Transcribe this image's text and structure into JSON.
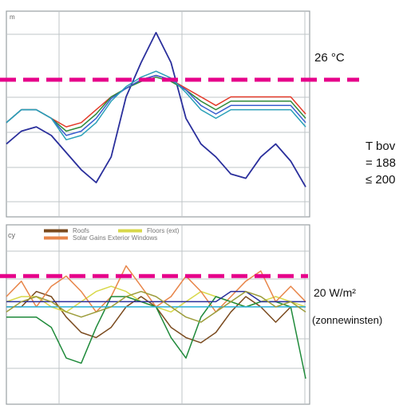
{
  "colors": {
    "threshold": "#e6008a",
    "grid": "#bfc4c7",
    "panel_border": "#9aa0a4",
    "series_temp": [
      "#2a2f9c",
      "#e43a2a",
      "#2f8a3a",
      "#3a5fcf",
      "#2aa0b8"
    ],
    "series_gains": [
      "#7a4a1e",
      "#d8d84a",
      "#e8864a",
      "#1f8a3a",
      "#2a2f9c",
      "#28b0d8",
      "#9c9c3a"
    ]
  },
  "top_panel": {
    "corner_text": "m",
    "threshold_label": "26 °C"
  },
  "bottom_panel": {
    "legend": [
      {
        "label": "Roofs",
        "color": "#7a4a1e"
      },
      {
        "label": "Floors (ext)",
        "color": "#d8d84a"
      },
      {
        "label": "Solar Gains Exterior Windows",
        "color": "#e8864a"
      }
    ],
    "legend_stub": "cy",
    "threshold_label": "20 W/m²",
    "threshold_sublabel": "(zonnewinsten)"
  },
  "side_note": {
    "line1": "T bov",
    "line2": "= 188",
    "line3": "≤ 200"
  },
  "chart_data": [
    {
      "type": "line",
      "title": "",
      "threshold": {
        "value": 26,
        "unit": "°C",
        "label": "26 °C"
      },
      "grid": true,
      "series": [
        {
          "values": [
            18.5,
            20.0,
            20.5,
            19.5,
            17.5,
            15.5,
            14.0,
            17.0,
            24.0,
            28.0,
            31.5,
            28.0,
            21.5,
            18.5,
            17.0,
            15.0,
            14.5,
            17.0,
            18.5,
            16.5,
            13.5
          ]
        },
        {
          "values": [
            21.0,
            22.5,
            22.5,
            21.5,
            20.5,
            21.0,
            22.5,
            24.0,
            25.0,
            26.0,
            26.5,
            26.0,
            25.0,
            24.0,
            23.0,
            24.0,
            24.0,
            24.0,
            24.0,
            24.0,
            22.0
          ]
        },
        {
          "values": [
            21.0,
            22.5,
            22.5,
            21.5,
            20.0,
            20.5,
            22.0,
            24.0,
            25.0,
            25.8,
            26.3,
            25.8,
            24.8,
            23.5,
            22.5,
            23.5,
            23.5,
            23.5,
            23.5,
            23.5,
            21.5
          ]
        },
        {
          "values": [
            21.0,
            22.5,
            22.5,
            21.5,
            19.5,
            20.0,
            21.5,
            23.8,
            25.0,
            26.0,
            26.5,
            26.0,
            24.8,
            23.0,
            22.0,
            23.0,
            23.0,
            23.0,
            23.0,
            23.0,
            21.0
          ]
        },
        {
          "values": [
            21.0,
            22.5,
            22.5,
            21.5,
            19.0,
            19.5,
            21.0,
            23.5,
            25.2,
            26.3,
            27.0,
            26.2,
            24.5,
            22.5,
            21.5,
            22.5,
            22.5,
            22.5,
            22.5,
            22.5,
            20.5
          ]
        }
      ]
    },
    {
      "type": "line",
      "title": "",
      "threshold": {
        "value": 20,
        "unit": "W/m²",
        "label": "20 W/m²"
      },
      "grid": true,
      "series": [
        {
          "name": "Roofs",
          "values": [
            14,
            14,
            17,
            16,
            12,
            9,
            8,
            10,
            14,
            16,
            14,
            10,
            8,
            7,
            9,
            13,
            16,
            14,
            11,
            14,
            14
          ]
        },
        {
          "name": "Floors (ext)",
          "values": [
            15,
            16,
            16,
            14,
            13,
            15,
            17,
            18,
            17,
            15,
            14,
            13,
            15,
            17,
            16,
            15,
            14,
            15,
            16,
            15,
            14
          ]
        },
        {
          "name": "Solar Gains Exterior Windows",
          "values": [
            16,
            19,
            14,
            18,
            20,
            17,
            13,
            16,
            22,
            18,
            14,
            16,
            20,
            17,
            13,
            16,
            19,
            21,
            15,
            18,
            15
          ]
        },
        {
          "values": [
            12,
            12,
            12,
            10,
            4,
            3,
            10,
            16,
            16,
            15,
            14,
            8,
            4,
            12,
            16,
            15,
            14,
            15,
            15,
            14,
            0
          ]
        },
        {
          "values": [
            15,
            15,
            15,
            15,
            15,
            15,
            15,
            15,
            15,
            15,
            15,
            15,
            15,
            15,
            15,
            17,
            17,
            15,
            15,
            15,
            15
          ]
        },
        {
          "values": [
            14,
            14,
            14,
            14,
            14,
            14,
            14,
            14,
            14,
            14,
            14,
            14,
            14,
            14,
            14,
            14,
            14,
            14,
            14,
            14,
            14
          ]
        },
        {
          "values": [
            13,
            15,
            16,
            15,
            13,
            12,
            13,
            14,
            16,
            17,
            16,
            14,
            12,
            11,
            13,
            15,
            17,
            16,
            14,
            15,
            13
          ]
        }
      ]
    }
  ]
}
